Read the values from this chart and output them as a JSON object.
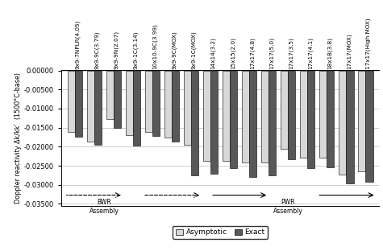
{
  "categories": [
    "9x9-7NPLR(4.05)",
    "9x9-9C(3.79)",
    "9x9-9N(2.07)",
    "9x9-1C(3.14)",
    "10x10-9C(3.99)",
    "9x9-9C(MOX)",
    "9x9-1C(MOX)",
    "14x14(3.2)",
    "15x15(2.0)",
    "17x17(4.8)",
    "17x17(5.0)",
    "17x17(3.5)",
    "17x17(4.1)",
    "18x18(3.8)",
    "17x17(MOX)",
    "17x17(High MOX)"
  ],
  "asymptotic": [
    -0.0162,
    -0.0187,
    -0.0128,
    -0.017,
    -0.0162,
    -0.0175,
    -0.0196,
    -0.0238,
    -0.0238,
    -0.0242,
    -0.0242,
    -0.0206,
    -0.0228,
    -0.0228,
    -0.0273,
    -0.0265
  ],
  "exact": [
    -0.0173,
    -0.0196,
    -0.015,
    -0.0198,
    -0.0172,
    -0.0187,
    -0.0276,
    -0.027,
    -0.0256,
    -0.028,
    -0.0276,
    -0.0232,
    -0.0256,
    -0.0254,
    -0.0296,
    -0.0292
  ],
  "asymptotic_color": "#d8d8d8",
  "exact_color": "#585858",
  "ylabel": "Doppler reactivity Δk/kk’  (1500°C-base)",
  "ylim": [
    -0.0355,
    5e-05
  ],
  "yticks": [
    0.0,
    -0.005,
    -0.01,
    -0.015,
    -0.02,
    -0.025,
    -0.03,
    -0.035
  ],
  "ytick_labels": [
    "0.00000",
    "-0.00500",
    "-0.01000",
    "-0.01500",
    "-0.02000",
    "-0.02500",
    "-0.03000",
    "-0.03500"
  ],
  "bar_width": 0.38
}
